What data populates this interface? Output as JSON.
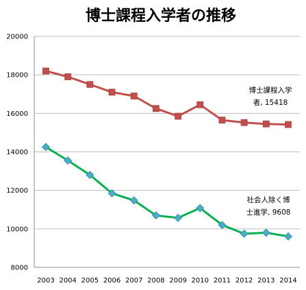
{
  "chart_data": {
    "type": "line",
    "title": "博士課程入学者の推移",
    "categories": [
      "2003",
      "2004",
      "2005",
      "2006",
      "2007",
      "2008",
      "2009",
      "2010",
      "2011",
      "2012",
      "2013",
      "2014"
    ],
    "ylim": [
      8000,
      20000
    ],
    "yticks": [
      8000,
      10000,
      12000,
      14000,
      16000,
      18000,
      20000
    ],
    "grid": true,
    "legend": "none",
    "series": [
      {
        "name": "博士課程入学者",
        "color": "#c0504d",
        "marker": "square",
        "values": [
          18200,
          17900,
          17500,
          17100,
          16900,
          16250,
          15850,
          16450,
          15650,
          15520,
          15450,
          15418
        ],
        "label_lines": [
          "博士課程入学",
          "者, 15418"
        ]
      },
      {
        "name": "社会人除く博士進学",
        "color": "#00b050",
        "marker_color": "#4bacc6",
        "marker": "diamond",
        "values": [
          14250,
          13550,
          12800,
          11850,
          11480,
          10700,
          10570,
          11080,
          10200,
          9750,
          9800,
          9608
        ],
        "label_lines": [
          "社会人除く博",
          "士進学, 9608"
        ]
      }
    ]
  }
}
